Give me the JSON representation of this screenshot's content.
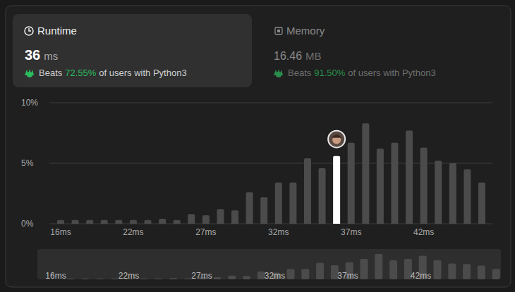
{
  "chart_data": {
    "type": "bar",
    "categories": [
      "16ms",
      null,
      null,
      null,
      null,
      "22ms",
      null,
      null,
      null,
      null,
      "27ms",
      null,
      null,
      null,
      null,
      "32ms",
      null,
      null,
      null,
      null,
      "37ms",
      null,
      null,
      null,
      null,
      "42ms",
      null,
      null,
      null,
      null
    ],
    "values": [
      0.3,
      0.3,
      0.3,
      0.3,
      0.3,
      0.3,
      0.3,
      0.4,
      0.3,
      0.8,
      0.7,
      1.2,
      1.1,
      2.6,
      2.2,
      3.4,
      3.4,
      5.4,
      4.6,
      5.6,
      6.7,
      8.3,
      6.2,
      6.7,
      7.7,
      6.3,
      5.2,
      5.0,
      4.5,
      3.4
    ],
    "color": "#4b4b4b",
    "colors": [
      "#4b4b4b",
      "#4b4b4b",
      "#4b4b4b",
      "#4b4b4b",
      "#4b4b4b",
      "#4b4b4b",
      "#4b4b4b",
      "#4b4b4b",
      "#4b4b4b",
      "#4b4b4b",
      "#4b4b4b",
      "#4b4b4b",
      "#4b4b4b",
      "#4b4b4b",
      "#4b4b4b",
      "#4b4b4b",
      "#4b4b4b",
      "#4b4b4b",
      "#4b4b4b",
      "#ffffff",
      "#4b4b4b",
      "#4b4b4b",
      "#4b4b4b",
      "#4b4b4b",
      "#4b4b4b",
      "#4b4b4b",
      "#4b4b4b",
      "#4b4b4b",
      "#4b4b4b",
      "#4b4b4b"
    ],
    "ylim": [
      0,
      10
    ],
    "yticks": [
      {
        "value": 0,
        "label": "0%"
      },
      {
        "value": 5,
        "label": "5%"
      },
      {
        "value": 10,
        "label": "10%"
      }
    ],
    "grid": true
  },
  "runtime_card": {
    "title": "Runtime",
    "value": 36,
    "unit": "ms",
    "beats_label": "Beats",
    "beats": "72.55%",
    "suffix": "of users with Python3"
  },
  "memory_card": {
    "title": "Memory",
    "value": 16.46,
    "unit": "MB",
    "beats_label": "Beats",
    "beats": "91.50%",
    "suffix": "of users with Python3"
  }
}
